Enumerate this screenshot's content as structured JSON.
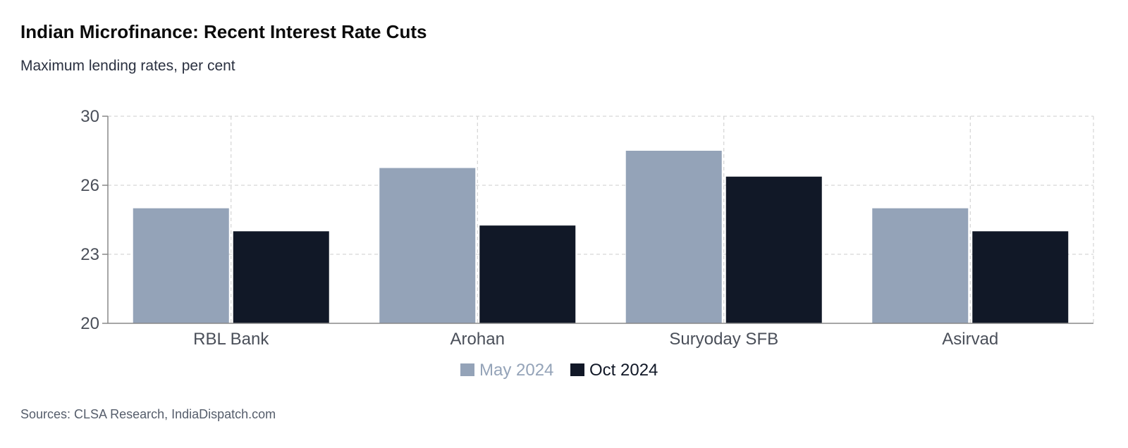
{
  "header": {
    "title": "Indian Microfinance: Recent Interest Rate Cuts",
    "subtitle": "Maximum lending rates, per cent"
  },
  "footer": {
    "source": "Sources: CLSA Research, IndiaDispatch.com"
  },
  "colors": {
    "may": "#94a3b8",
    "oct": "#111827",
    "grid": "#cccccc",
    "axis": "#888888"
  },
  "chart_data": {
    "type": "bar",
    "title": "Indian Microfinance: Recent Interest Rate Cuts",
    "subtitle": "Maximum lending rates, per cent",
    "categories": [
      "RBL Bank",
      "Arohan",
      "Suryoday SFB",
      "Asirvad"
    ],
    "series": [
      {
        "name": "May 2024",
        "values": [
          25.0,
          27.0,
          28.0,
          25.0
        ]
      },
      {
        "name": "Oct 2024",
        "values": [
          24.0,
          24.25,
          26.5,
          24.0
        ]
      }
    ],
    "ylim": [
      20,
      30
    ],
    "yticks": [
      20,
      23,
      26,
      30
    ],
    "xlabel": "",
    "ylabel": "",
    "grid": true,
    "legend": "bottom-center"
  }
}
